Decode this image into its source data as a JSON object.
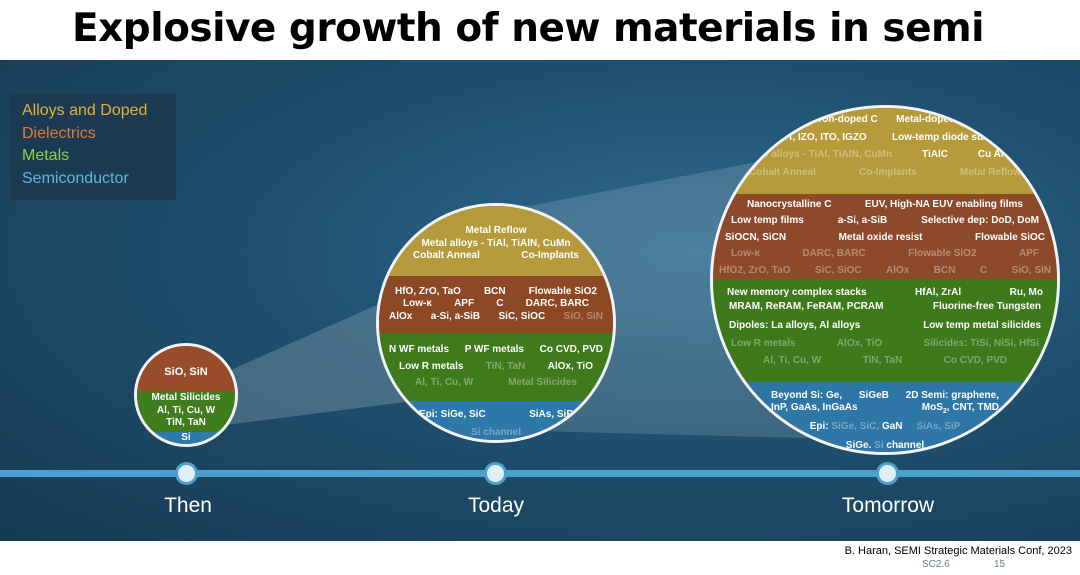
{
  "title": "Explosive growth of new materials in semi",
  "legend": [
    {
      "label": "Alloys and Doped",
      "color": "#e0b23e"
    },
    {
      "label": "Dielectrics",
      "color": "#e07a3a"
    },
    {
      "label": "Metals",
      "color": "#8fd14f"
    },
    {
      "label": "Semiconductor",
      "color": "#5fb7e6"
    }
  ],
  "timeline": [
    "Then",
    "Today",
    "Tomorrow"
  ],
  "then": {
    "dielectric": "SiO, SiN",
    "metal": [
      "Metal Silicides",
      "Al, Ti, Cu, W",
      "TiN, TaN"
    ],
    "semi": "Si"
  },
  "today": {
    "alloy": [
      "Metal Reflow",
      "Metal alloys - TiAl, TiAlN, CuMn"
    ],
    "alloy_row": [
      "Cobalt Anneal",
      "Co-Implants"
    ],
    "diel_r1": [
      "HfO, ZrO, TaO",
      "BCN",
      "Flowable SiO2"
    ],
    "diel_r2": [
      "Low-κ",
      "APF",
      "C",
      "DARC, BARC"
    ],
    "diel_r3": [
      "AlOx",
      "a-Si, a-SiB",
      "SiC, SiOC",
      "SiO, SiN"
    ],
    "metal_r1": [
      "N WF metals",
      "P WF metals",
      "Co CVD, PVD"
    ],
    "metal_r2": [
      "Low R metals",
      "TiN, TaN",
      "AlOx, TiO"
    ],
    "metal_r3": [
      "Al, Ti, Cu, W",
      "Metal Silicides"
    ],
    "semi_r1": [
      "Epi: SiGe, SiC",
      "SiAs, SiP"
    ],
    "semi_r2": "Si channel"
  },
  "tomorrow": {
    "alloy_r1": [
      "Boron-doped C",
      "Metal-doped C"
    ],
    "alloy_r2": [
      "GST, IZO, ITO, IGZO",
      "Low-temp diode stack"
    ],
    "alloy_r3": [
      "Metal alloys - TiAl, TiAlN, CuMn",
      "TiAlC",
      "Cu Anneal"
    ],
    "alloy_r4": [
      "Cobalt Anneal",
      "Co-Implants",
      "Metal Reflow"
    ],
    "diel_r1": [
      "Nanocrystalline C",
      "EUV, High-NA EUV enabling films"
    ],
    "diel_r2": [
      "Low temp films",
      "a-Si, a-SiB",
      "Selective dep: DoD, DoM"
    ],
    "diel_r3": [
      "SiOCN, SiCN",
      "Metal oxide resist",
      "Flowable SiOC"
    ],
    "diel_r4": [
      "Low-κ",
      "DARC, BARC",
      "Flowable SiO2",
      "APF"
    ],
    "diel_r5": [
      "HfO2, ZrO, TaO",
      "SiC, SiOC",
      "AlOx",
      "BCN",
      "C",
      "SiO, SiN"
    ],
    "metal_r1": [
      "New memory complex stacks",
      "HfAl, ZrAl",
      "Ru, Mo"
    ],
    "metal_r2": [
      "MRAM, ReRAM, FeRAM, PCRAM",
      "Fluorine-free Tungsten"
    ],
    "metal_r3": [
      "Dipoles: La alloys, Al alloys",
      "Low temp metal silicides"
    ],
    "metal_r4": [
      "Low R metals",
      "AlOx, TiO",
      "Silicides: TiSi, NiSi, HfSi"
    ],
    "metal_r5": [
      "Al, Ti, Cu, W",
      "TiN, TaN",
      "Co CVD, PVD"
    ],
    "semi_r1": [
      "Beyond Si: Ge,",
      "SiGeB",
      "2D Semi: graphene,"
    ],
    "semi_r2": [
      "InP, GaAs, InGaAs",
      "MoS",
      "2",
      ", CNT, TMD"
    ],
    "semi_r3": [
      "Epi:",
      "SiGe, SiC,",
      "GaN",
      "SiAs, SiP"
    ],
    "semi_r4": [
      "SiGe.",
      "Si",
      "channel"
    ]
  },
  "credit": "B. Haran, SEMI Strategic Materials Conf, 2023",
  "slide_code": "SC2.6",
  "page": "15"
}
